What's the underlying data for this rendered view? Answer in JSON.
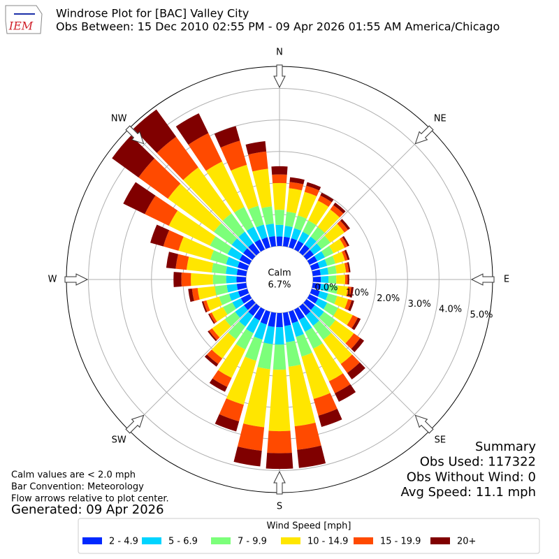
{
  "chart_data": {
    "type": "windrose",
    "logo_text": "IEM",
    "title": "Windrose Plot for [BAC] Valley City",
    "subtitle": "Obs Between: 15 Dec 2010 02:55 PM - 09 Apr 2026 01:55 AM America/Chicago",
    "x": [
      0,
      10,
      20,
      30,
      40,
      50,
      60,
      70,
      80,
      90,
      100,
      110,
      120,
      130,
      140,
      150,
      160,
      170,
      180,
      190,
      200,
      210,
      220,
      230,
      240,
      250,
      260,
      270,
      280,
      290,
      300,
      310,
      320,
      330,
      340,
      350
    ],
    "xticks": [
      {
        "value": 0,
        "label": "N"
      },
      {
        "value": 45,
        "label": "NE"
      },
      {
        "value": 90,
        "label": "E"
      },
      {
        "value": 135,
        "label": "SE"
      },
      {
        "value": 180,
        "label": "S"
      },
      {
        "value": 225,
        "label": "SW"
      },
      {
        "value": 270,
        "label": "W"
      },
      {
        "value": 315,
        "label": "NW"
      }
    ],
    "ylim": [
      0,
      5.7
    ],
    "yticks": [
      {
        "value": 0,
        "label": "0.0%"
      },
      {
        "value": 1,
        "label": "1.0%"
      },
      {
        "value": 2,
        "label": "2.0%"
      },
      {
        "value": 3,
        "label": "3.0%"
      },
      {
        "value": 4,
        "label": "4.0%"
      },
      {
        "value": 5,
        "label": "5.0%"
      }
    ],
    "grid": true,
    "calm_label": "Calm",
    "calm_value": 6.7,
    "calm_value_label": "6.7%",
    "legend_title": "Wind Speed [mph]",
    "series": [
      {
        "name": "2 - 4.9",
        "color": "#0028ff",
        "values": [
          0.3,
          0.3,
          0.3,
          0.3,
          0.3,
          0.28,
          0.27,
          0.26,
          0.25,
          0.25,
          0.26,
          0.27,
          0.3,
          0.32,
          0.35,
          0.36,
          0.38,
          0.42,
          0.45,
          0.45,
          0.42,
          0.38,
          0.36,
          0.33,
          0.3,
          0.3,
          0.3,
          0.3,
          0.3,
          0.32,
          0.35,
          0.36,
          0.36,
          0.35,
          0.33,
          0.32
        ]
      },
      {
        "name": "5 - 6.9",
        "color": "#00d4ff",
        "values": [
          0.37,
          0.35,
          0.33,
          0.32,
          0.32,
          0.3,
          0.27,
          0.25,
          0.25,
          0.24,
          0.26,
          0.27,
          0.32,
          0.36,
          0.4,
          0.42,
          0.45,
          0.52,
          0.55,
          0.55,
          0.5,
          0.45,
          0.42,
          0.35,
          0.3,
          0.3,
          0.32,
          0.33,
          0.35,
          0.38,
          0.42,
          0.45,
          0.45,
          0.45,
          0.42,
          0.4
        ]
      },
      {
        "name": "7 - 9.9",
        "color": "#7cff7a",
        "values": [
          0.48,
          0.45,
          0.42,
          0.4,
          0.38,
          0.35,
          0.3,
          0.27,
          0.26,
          0.25,
          0.28,
          0.3,
          0.38,
          0.45,
          0.55,
          0.6,
          0.65,
          0.78,
          0.8,
          0.8,
          0.7,
          0.58,
          0.5,
          0.4,
          0.33,
          0.33,
          0.38,
          0.42,
          0.45,
          0.52,
          0.62,
          0.7,
          0.72,
          0.7,
          0.62,
          0.55
        ]
      },
      {
        "name": "10 - 14.9",
        "color": "#ffe600",
        "values": [
          0.85,
          0.75,
          0.78,
          0.7,
          0.68,
          0.55,
          0.4,
          0.32,
          0.3,
          0.28,
          0.32,
          0.36,
          0.52,
          0.72,
          0.95,
          1.15,
          1.4,
          1.9,
          1.95,
          1.85,
          1.45,
          1.0,
          0.75,
          0.5,
          0.4,
          0.42,
          0.55,
          0.7,
          0.8,
          1.05,
          1.45,
          1.8,
          1.8,
          1.6,
          1.35,
          1.2
        ]
      },
      {
        "name": "15 - 19.9",
        "color": "#ff4a00",
        "values": [
          0.27,
          0.2,
          0.2,
          0.18,
          0.17,
          0.14,
          0.1,
          0.09,
          0.09,
          0.08,
          0.11,
          0.12,
          0.18,
          0.25,
          0.35,
          0.42,
          0.55,
          0.75,
          0.7,
          0.75,
          0.55,
          0.32,
          0.22,
          0.12,
          0.08,
          0.1,
          0.18,
          0.3,
          0.35,
          0.5,
          0.85,
          1.15,
          1.2,
          1.0,
          0.8,
          0.55
        ]
      },
      {
        "name": "20+",
        "color": "#800000",
        "values": [
          0.26,
          0.15,
          0.12,
          0.1,
          0.1,
          0.08,
          0.06,
          0.06,
          0.05,
          0.05,
          0.07,
          0.08,
          0.1,
          0.15,
          0.25,
          0.3,
          0.37,
          0.58,
          0.5,
          0.5,
          0.33,
          0.17,
          0.1,
          0.05,
          0.04,
          0.05,
          0.12,
          0.25,
          0.3,
          0.43,
          0.76,
          1.04,
          1.07,
          0.7,
          0.48,
          0.33
        ]
      }
    ],
    "summary": [
      "Summary",
      "Obs Used: 117322",
      "Obs Without Wind: 0",
      "Avg Speed: 11.1 mph"
    ],
    "notes": [
      "Calm values are < 2.0 mph",
      "Bar Convention: Meteorology",
      "Flow arrows relative to plot center."
    ],
    "generated": "Generated: 09 Apr 2026"
  }
}
